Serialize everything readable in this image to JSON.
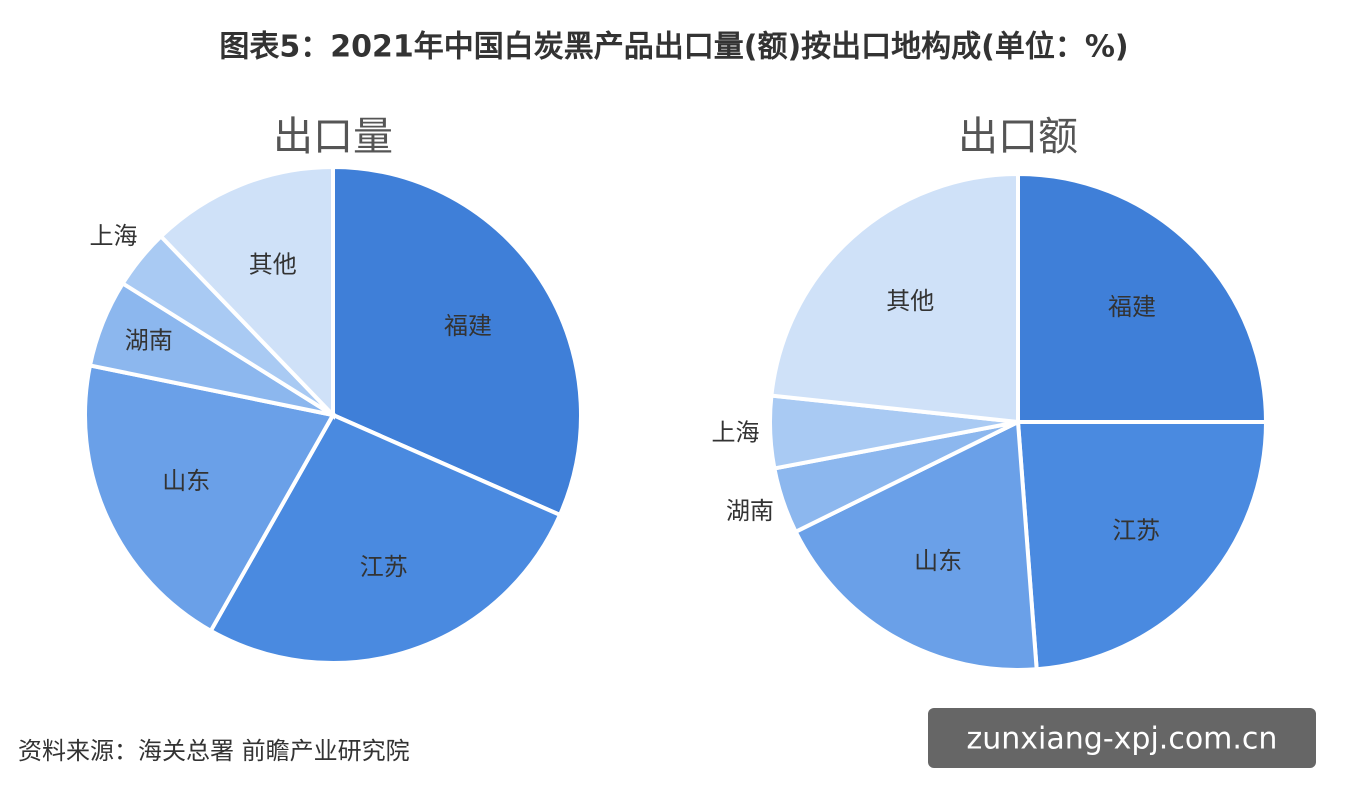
{
  "title": "图表5：2021年中国白炭黑产品出口量(额)按出口地构成(单位：%)",
  "source": "资料来源：海关总署 前瞻产业研究院",
  "watermark": "zunxiang-xpj.com.cn",
  "chart_data": [
    {
      "type": "pie",
      "title": "出口量",
      "categories": [
        "福建",
        "江苏",
        "山东",
        "湖南",
        "上海",
        "其他"
      ],
      "values": [
        31.6,
        26.6,
        20.0,
        5.7,
        3.9,
        12.2
      ],
      "colors": [
        "#3f7fd8",
        "#4a8ae0",
        "#6aa0e8",
        "#8cb7ee",
        "#a9caf3",
        "#cfe1f8"
      ]
    },
    {
      "type": "pie",
      "title": "出口额",
      "categories": [
        "福建",
        "江苏",
        "山东",
        "湖南",
        "上海",
        "其他"
      ],
      "values": [
        25.0,
        23.8,
        18.9,
        4.3,
        4.7,
        23.3
      ],
      "colors": [
        "#3f7fd8",
        "#4a8ae0",
        "#6aa0e8",
        "#8cb7ee",
        "#a9caf3",
        "#cfe1f8"
      ]
    }
  ]
}
